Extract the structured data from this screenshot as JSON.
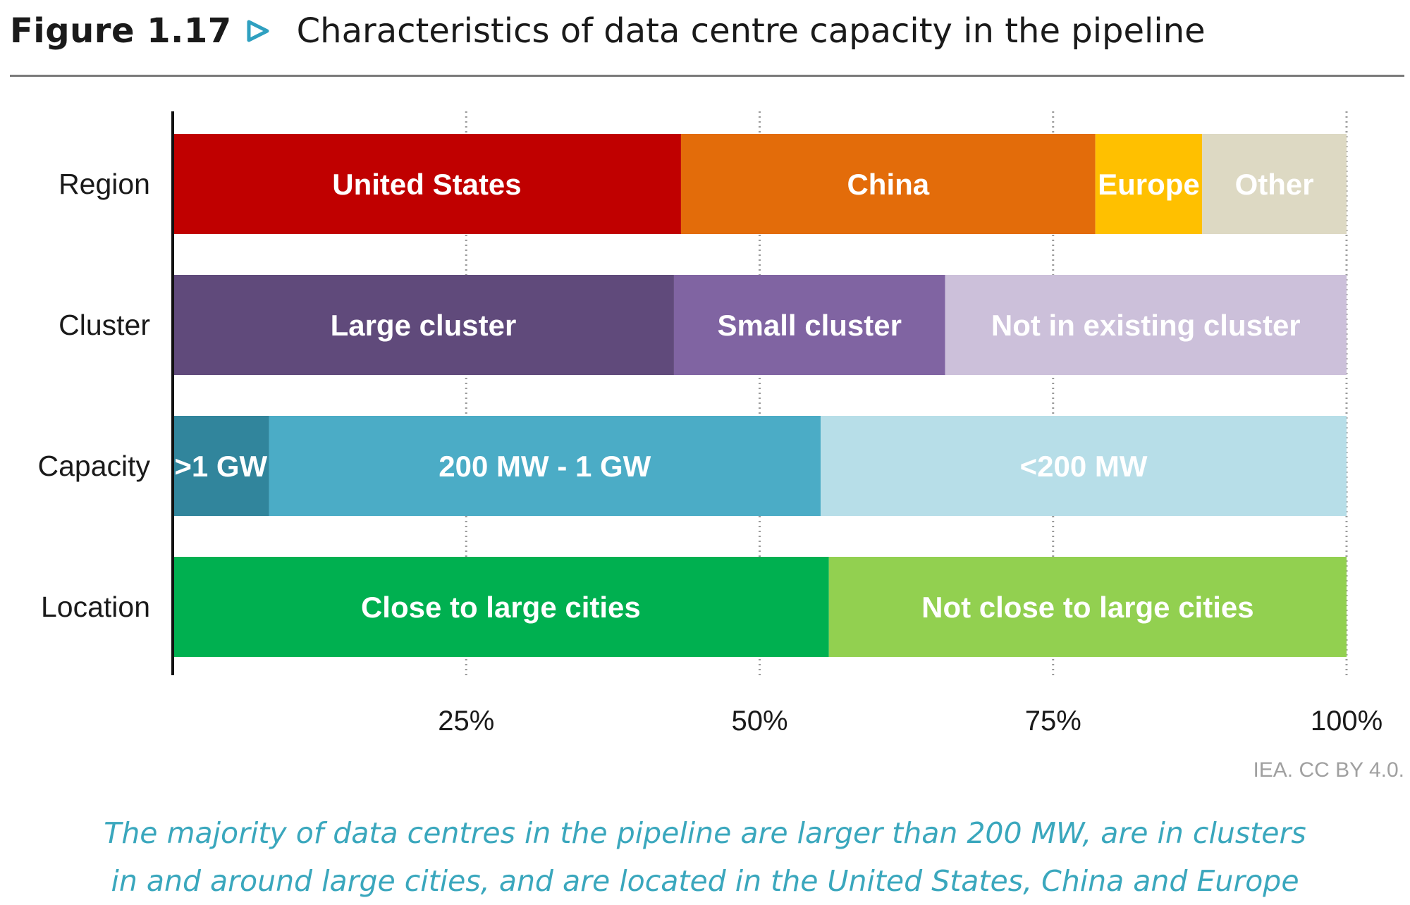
{
  "figure": {
    "number": "Figure 1.17",
    "title": "Characteristics of data centre capacity in the pipeline"
  },
  "colors": {
    "accent": "#2fa0c0",
    "axis": "#111111",
    "grid": "#9a9a9a",
    "caption": "#3aa7bd"
  },
  "chart_data": {
    "type": "stacked-bar-horizontal",
    "title": "Characteristics of data centre capacity in the pipeline",
    "x_axis": {
      "range": [
        0,
        100
      ],
      "unit": "%",
      "ticks": [
        25,
        50,
        75,
        100
      ],
      "tick_labels": [
        "25%",
        "50%",
        "75%",
        "100%"
      ],
      "grid": "dotted"
    },
    "bars": [
      {
        "category": "Region",
        "segments": [
          {
            "label": "United States",
            "value": 43.3,
            "color": "#c00000",
            "text_color": "#ffffff"
          },
          {
            "label": "China",
            "value": 35.3,
            "color": "#e36c0a",
            "text_color": "#ffffff"
          },
          {
            "label": "Europe",
            "value": 9.1,
            "color": "#ffc000",
            "text_color": "#ffffff"
          },
          {
            "label": "Other",
            "value": 12.3,
            "color": "#ddd9c3",
            "text_color": "#ffffff"
          }
        ]
      },
      {
        "category": "Cluster",
        "segments": [
          {
            "label": "Large cluster",
            "value": 42.7,
            "color": "#604a7b",
            "text_color": "#ffffff"
          },
          {
            "label": "Small cluster",
            "value": 23.1,
            "color": "#8064a2",
            "text_color": "#ffffff"
          },
          {
            "label": "Not in existing cluster",
            "value": 34.2,
            "color": "#ccc0da",
            "text_color": "#ffffff"
          }
        ]
      },
      {
        "category": "Capacity",
        "segments": [
          {
            "label": ">1 GW",
            "value": 8.2,
            "color": "#31859c",
            "text_color": "#ffffff"
          },
          {
            "label": "200 MW - 1 GW",
            "value": 47.0,
            "color": "#4bacc6",
            "text_color": "#ffffff"
          },
          {
            "label": "<200 MW",
            "value": 44.8,
            "color": "#b7dee8",
            "text_color": "#ffffff"
          }
        ]
      },
      {
        "category": "Location",
        "segments": [
          {
            "label": "Close to large cities",
            "value": 55.9,
            "color": "#00b050",
            "text_color": "#ffffff"
          },
          {
            "label": "Not close to large cities",
            "value": 44.1,
            "color": "#92d050",
            "text_color": "#ffffff"
          }
        ]
      }
    ]
  },
  "credit": "IEA. CC BY 4.0.",
  "caption": {
    "line1": "The majority of data centres in the pipeline are larger than 200 MW, are in clusters",
    "line2": "in and around large cities, and are located in the United States, China and Europe"
  }
}
